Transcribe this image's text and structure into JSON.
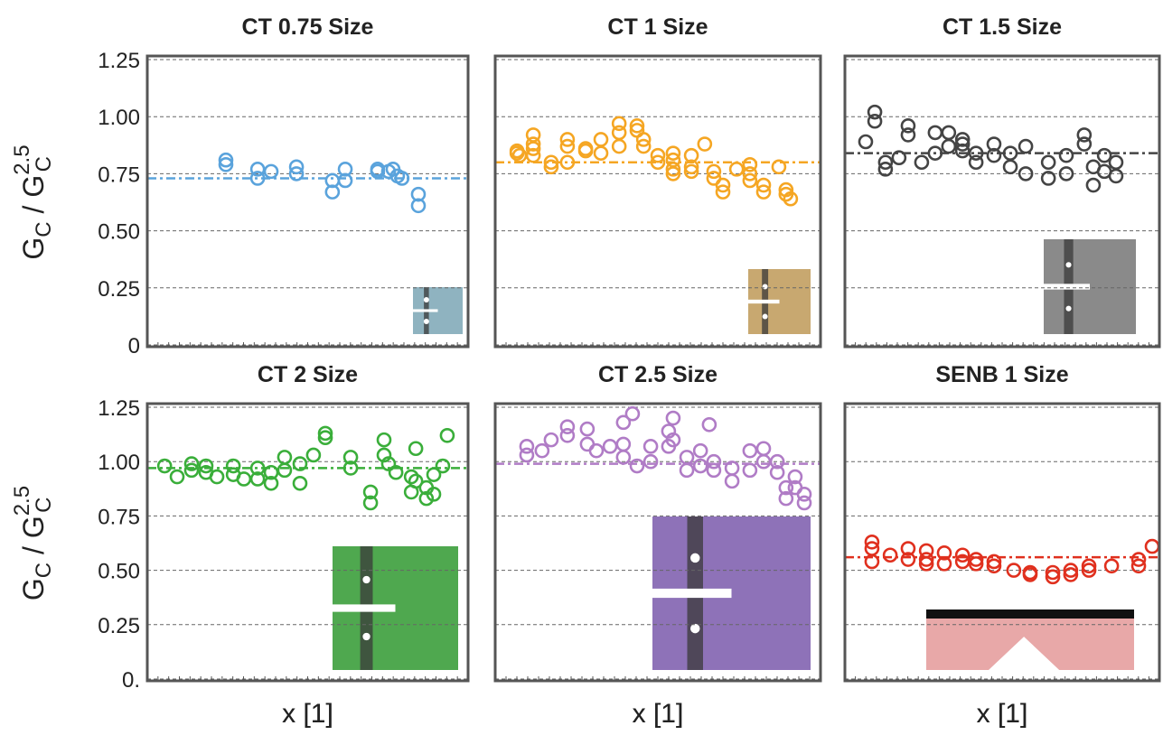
{
  "chart_data": [
    {
      "type": "scatter",
      "title": "CT 0.75 Size",
      "xlabel": "x [1]",
      "ylabel": {
        "g1": "G",
        "sub1": "C",
        "mid": " / G",
        "sub2": "C",
        "sup2": "2.5"
      },
      "xlim": [
        0,
        1
      ],
      "ylim": [
        0,
        1.25
      ],
      "yticks": [
        0,
        0.25,
        {
          "value": 0.5,
          "label": "0.50"
        },
        0.75,
        {
          "value": 1,
          "label": "1.00"
        },
        1.25
      ],
      "grid": true,
      "mean": 0.73,
      "series": [
        {
          "color": "#5aa3dc",
          "x": [
            0.245,
            0.245,
            0.344,
            0.344,
            0.386,
            0.465,
            0.465,
            0.577,
            0.577,
            0.617,
            0.617,
            0.718,
            0.718,
            0.752,
            0.766,
            0.78,
            0.794,
            0.845,
            0.845
          ],
          "values": [
            0.81,
            0.79,
            0.77,
            0.73,
            0.76,
            0.78,
            0.75,
            0.72,
            0.67,
            0.77,
            0.72,
            0.76,
            0.77,
            0.76,
            0.77,
            0.74,
            0.73,
            0.66,
            0.61
          ]
        }
      ]
    },
    {
      "type": "scatter",
      "title": "CT 1 Size",
      "xlabel": "x [1]",
      "xlim": [
        0,
        1
      ],
      "ylim": [
        0,
        1.25
      ],
      "yticks": [
        0,
        0.25,
        0.5,
        0.75,
        1,
        1.25
      ],
      "grid": true,
      "mean": 0.8,
      "series": [
        {
          "color": "#f5a623",
          "x": [
            0.067,
            0.067,
            0.075,
            0.117,
            0.117,
            0.117,
            0.117,
            0.172,
            0.172,
            0.222,
            0.222,
            0.222,
            0.278,
            0.278,
            0.325,
            0.325,
            0.381,
            0.381,
            0.381,
            0.436,
            0.436,
            0.456,
            0.456,
            0.5,
            0.5,
            0.547,
            0.547,
            0.547,
            0.547,
            0.603,
            0.603,
            0.603,
            0.644,
            0.672,
            0.672,
            0.7,
            0.7,
            0.742,
            0.783,
            0.783,
            0.783,
            0.825,
            0.825,
            0.872,
            0.894,
            0.894,
            0.908
          ],
          "values": [
            0.85,
            0.84,
            0.83,
            0.92,
            0.88,
            0.86,
            0.83,
            0.8,
            0.78,
            0.9,
            0.87,
            0.8,
            0.86,
            0.85,
            0.9,
            0.84,
            0.97,
            0.93,
            0.87,
            0.96,
            0.94,
            0.9,
            0.87,
            0.83,
            0.8,
            0.84,
            0.81,
            0.77,
            0.75,
            0.83,
            0.78,
            0.76,
            0.88,
            0.76,
            0.73,
            0.7,
            0.67,
            0.77,
            0.79,
            0.75,
            0.72,
            0.7,
            0.67,
            0.78,
            0.68,
            0.66,
            0.64
          ]
        }
      ]
    },
    {
      "type": "scatter",
      "title": "CT 1.5 Size",
      "xlabel": "x [1]",
      "xlim": [
        0,
        1
      ],
      "ylim": [
        0,
        1.25
      ],
      "yticks": [
        0,
        0.25,
        0.5,
        0.75,
        1,
        1.25
      ],
      "grid": true,
      "mean": 0.84,
      "series": [
        {
          "color": "#444444",
          "x": [
            0.066,
            0.095,
            0.095,
            0.129,
            0.129,
            0.172,
            0.201,
            0.201,
            0.244,
            0.287,
            0.287,
            0.33,
            0.33,
            0.374,
            0.374,
            0.374,
            0.417,
            0.417,
            0.474,
            0.474,
            0.526,
            0.526,
            0.575,
            0.575,
            0.647,
            0.647,
            0.704,
            0.704,
            0.761,
            0.761,
            0.79,
            0.79,
            0.825,
            0.825,
            0.862,
            0.862
          ],
          "values": [
            0.89,
            1.02,
            0.98,
            0.8,
            0.77,
            0.82,
            0.96,
            0.92,
            0.8,
            0.93,
            0.84,
            0.93,
            0.87,
            0.9,
            0.85,
            0.88,
            0.8,
            0.84,
            0.88,
            0.83,
            0.84,
            0.78,
            0.87,
            0.75,
            0.8,
            0.73,
            0.83,
            0.75,
            0.92,
            0.88,
            0.78,
            0.7,
            0.83,
            0.76,
            0.8,
            0.74
          ]
        }
      ]
    },
    {
      "type": "scatter",
      "title": "CT 2 Size",
      "xlabel": "x [1]",
      "ylabel": {
        "g1": "G",
        "sub1": "C",
        "mid": " / G",
        "sub2": "C",
        "sup2": "2.5"
      },
      "xlim": [
        0,
        1
      ],
      "ylim": [
        0,
        1.25
      ],
      "yticks": [
        {
          "value": 0,
          "label": "0."
        },
        0.25,
        {
          "value": 0.5,
          "label": "0.50"
        },
        0.75,
        {
          "value": 1,
          "label": "1.00"
        },
        1.25
      ],
      "grid": true,
      "mean": 0.97,
      "series": [
        {
          "color": "#3aae3a",
          "x": [
            0.054,
            0.093,
            0.138,
            0.138,
            0.183,
            0.183,
            0.217,
            0.268,
            0.268,
            0.301,
            0.344,
            0.344,
            0.386,
            0.386,
            0.428,
            0.428,
            0.476,
            0.476,
            0.518,
            0.555,
            0.555,
            0.634,
            0.634,
            0.696,
            0.696,
            0.738,
            0.738,
            0.752,
            0.775,
            0.823,
            0.823,
            0.837,
            0.837,
            0.87,
            0.87,
            0.893,
            0.893,
            0.921,
            0.935
          ],
          "values": [
            0.98,
            0.93,
            0.99,
            0.96,
            0.98,
            0.95,
            0.93,
            0.98,
            0.94,
            0.92,
            0.97,
            0.92,
            0.95,
            0.9,
            1.02,
            0.96,
            0.99,
            0.9,
            1.03,
            1.13,
            1.11,
            1.02,
            0.97,
            0.86,
            0.81,
            1.1,
            1.03,
            0.99,
            0.95,
            0.93,
            0.86,
            1.06,
            0.91,
            0.88,
            0.83,
            0.94,
            0.85,
            0.98,
            1.12
          ]
        }
      ]
    },
    {
      "type": "scatter",
      "title": "CT 2.5 Size",
      "xlabel": "x [1]",
      "xlim": [
        0,
        1
      ],
      "ylim": [
        0,
        1.25
      ],
      "yticks": [
        0,
        0.25,
        0.5,
        0.75,
        1,
        1.25
      ],
      "grid": true,
      "mean": 0.99,
      "series": [
        {
          "color": "#b07cc6",
          "x": [
            0.097,
            0.097,
            0.144,
            0.172,
            0.222,
            0.222,
            0.283,
            0.283,
            0.311,
            0.353,
            0.394,
            0.394,
            0.394,
            0.422,
            0.436,
            0.478,
            0.478,
            0.533,
            0.533,
            0.547,
            0.547,
            0.589,
            0.589,
            0.631,
            0.631,
            0.658,
            0.672,
            0.672,
            0.728,
            0.728,
            0.783,
            0.783,
            0.825,
            0.825,
            0.867,
            0.867,
            0.894,
            0.894,
            0.922,
            0.922,
            0.95,
            0.95
          ],
          "values": [
            1.07,
            1.03,
            1.05,
            1.1,
            1.16,
            1.12,
            1.15,
            1.08,
            1.05,
            1.07,
            1.18,
            1.08,
            1.02,
            1.22,
            0.98,
            1.07,
            1.0,
            1.14,
            1.07,
            1.2,
            1.1,
            1.02,
            0.96,
            1.05,
            0.98,
            1.17,
            1.0,
            0.96,
            0.97,
            0.91,
            1.05,
            0.96,
            1.06,
            1.0,
            1.0,
            0.95,
            0.88,
            0.83,
            0.93,
            0.88,
            0.85,
            0.81
          ]
        }
      ]
    },
    {
      "type": "scatter",
      "title": "SENB 1 Size",
      "xlabel": "x [1]",
      "xlim": [
        0,
        1
      ],
      "ylim": [
        0,
        1.25
      ],
      "yticks": [
        0,
        0.25,
        0.5,
        0.75,
        1,
        1.25
      ],
      "grid": true,
      "mean": 0.56,
      "series": [
        {
          "color": "#e0301e",
          "x": [
            0.086,
            0.086,
            0.086,
            0.144,
            0.201,
            0.201,
            0.259,
            0.259,
            0.259,
            0.316,
            0.316,
            0.374,
            0.374,
            0.417,
            0.417,
            0.474,
            0.474,
            0.537,
            0.589,
            0.589,
            0.661,
            0.661,
            0.718,
            0.718,
            0.776,
            0.776,
            0.848,
            0.934,
            0.934,
            0.977
          ],
          "values": [
            0.63,
            0.6,
            0.54,
            0.57,
            0.6,
            0.55,
            0.59,
            0.55,
            0.53,
            0.58,
            0.53,
            0.57,
            0.54,
            0.55,
            0.53,
            0.54,
            0.52,
            0.5,
            0.49,
            0.48,
            0.49,
            0.47,
            0.5,
            0.48,
            0.5,
            0.52,
            0.52,
            0.55,
            0.52,
            0.61
          ]
        }
      ]
    }
  ]
}
